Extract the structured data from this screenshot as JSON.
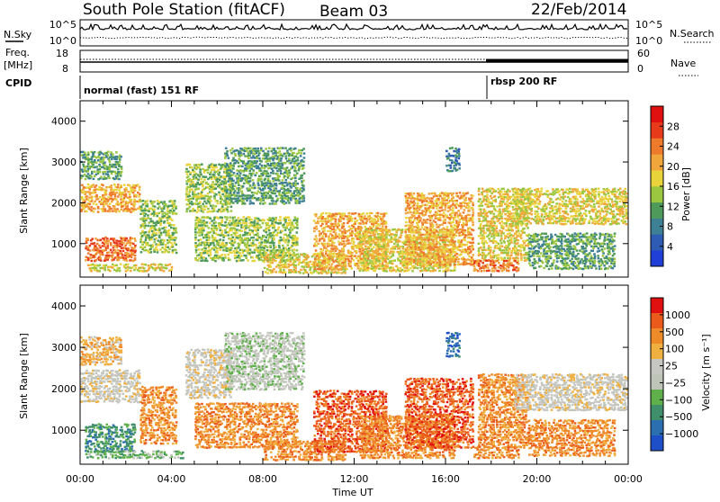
{
  "header": {
    "station_title": "South Pole Station (fitACF)",
    "beam": "Beam 03",
    "date": "22/Feb/2014"
  },
  "summary_panels": {
    "nsky_label": "N.Sky",
    "nsearch_label": "N.Search",
    "noise_ticks": [
      "10^5",
      "10^0"
    ],
    "freq_label": "Freq.",
    "freq_unit": "[MHz]",
    "freq_ticks": [
      "18",
      "8"
    ],
    "nave_label": "Nave",
    "nave_ticks": [
      "60",
      "0"
    ],
    "cpid_label": "CPID",
    "cpid_modes": [
      {
        "name": "normal (fast) 151 RF",
        "start_hour": 0.0
      },
      {
        "name": "rbsp 200 RF",
        "start_hour": 18.0
      }
    ]
  },
  "colors": {
    "power_scale": [
      "#1f3fd6",
      "#2e5cb4",
      "#3d7f93",
      "#4e9a5a",
      "#9bc640",
      "#e8d33a",
      "#f0a63a",
      "#ee7a2c",
      "#e63a1a",
      "#e01010"
    ],
    "velocity_scale": [
      "#1f4fc8",
      "#2c6fb0",
      "#3f8f6a",
      "#5fb04a",
      "#bfc4b8",
      "#c6c6c2",
      "#f0b040",
      "#ef8a28",
      "#ea5a1a",
      "#e01010"
    ]
  },
  "chart_data": [
    {
      "type": "heatmap",
      "quantity": "Power",
      "xlabel": "Time UT",
      "ylabel": "Slant Range [km]",
      "x_ticks": [
        "00:00",
        "04:00",
        "08:00",
        "12:00",
        "16:00",
        "20:00",
        "00:00"
      ],
      "xlim": [
        0,
        24
      ],
      "ylim": [
        180,
        4500
      ],
      "y_ticks": [
        1000,
        2000,
        3000,
        4000
      ],
      "colorbar_label": "Power [dB]",
      "colorbar_ticks": [
        4,
        8,
        12,
        16,
        20,
        24,
        28
      ],
      "colorbar_range": [
        0,
        32
      ],
      "echo_regions": [
        {
          "t0": 0.0,
          "t1": 2.6,
          "r0": 1800,
          "r1": 2500,
          "level": 20
        },
        {
          "t0": 0.0,
          "t1": 1.8,
          "r0": 2600,
          "r1": 3300,
          "level": 10
        },
        {
          "t0": 0.2,
          "t1": 2.4,
          "r0": 600,
          "r1": 1200,
          "level": 24
        },
        {
          "t0": 0.3,
          "t1": 4.0,
          "r0": 350,
          "r1": 550,
          "level": 18
        },
        {
          "t0": 2.6,
          "t1": 4.2,
          "r0": 800,
          "r1": 2100,
          "level": 14
        },
        {
          "t0": 4.6,
          "t1": 6.6,
          "r0": 1800,
          "r1": 3000,
          "level": 14
        },
        {
          "t0": 6.3,
          "t1": 9.8,
          "r0": 2000,
          "r1": 3400,
          "level": 12
        },
        {
          "t0": 5.0,
          "t1": 9.5,
          "r0": 600,
          "r1": 1700,
          "level": 14
        },
        {
          "t0": 8.0,
          "t1": 11.6,
          "r0": 300,
          "r1": 800,
          "level": 16
        },
        {
          "t0": 10.2,
          "t1": 13.4,
          "r0": 400,
          "r1": 1800,
          "level": 22
        },
        {
          "t0": 12.2,
          "t1": 16.4,
          "r0": 350,
          "r1": 1400,
          "level": 16
        },
        {
          "t0": 14.2,
          "t1": 17.2,
          "r0": 500,
          "r1": 2300,
          "level": 22
        },
        {
          "t0": 17.4,
          "t1": 19.6,
          "r0": 600,
          "r1": 2400,
          "level": 18
        },
        {
          "t0": 17.2,
          "t1": 19.2,
          "r0": 350,
          "r1": 650,
          "level": 24
        },
        {
          "t0": 19.0,
          "t1": 24.0,
          "r0": 1500,
          "r1": 2400,
          "level": 16
        },
        {
          "t0": 19.6,
          "t1": 23.4,
          "r0": 400,
          "r1": 1300,
          "level": 10
        },
        {
          "t0": 16.0,
          "t1": 16.6,
          "r0": 2800,
          "r1": 3400,
          "level": 8
        }
      ]
    },
    {
      "type": "heatmap",
      "quantity": "Velocity",
      "xlabel": "Time UT",
      "ylabel": "Slant Range [km]",
      "x_ticks": [
        "00:00",
        "04:00",
        "08:00",
        "12:00",
        "16:00",
        "20:00",
        "00:00"
      ],
      "xlim": [
        0,
        24
      ],
      "ylim": [
        180,
        4500
      ],
      "y_ticks": [
        1000,
        2000,
        3000,
        4000
      ],
      "colorbar_label": "Velocity [m s⁻¹]",
      "colorbar_ticks": [
        "1000",
        "500",
        "100",
        "25",
        "−25",
        "−100",
        "−500",
        "−1000"
      ],
      "echo_regions": [
        {
          "t0": 0.0,
          "t1": 2.6,
          "r0": 1700,
          "r1": 2500,
          "level": 5
        },
        {
          "t0": 0.0,
          "t1": 1.8,
          "r0": 2600,
          "r1": 3300,
          "level": 6
        },
        {
          "t0": 0.2,
          "t1": 2.4,
          "r0": 500,
          "r1": 1200,
          "level": 2
        },
        {
          "t0": 0.2,
          "t1": 4.5,
          "r0": 350,
          "r1": 550,
          "level": 3
        },
        {
          "t0": 2.6,
          "t1": 4.2,
          "r0": 700,
          "r1": 2100,
          "level": 7
        },
        {
          "t0": 4.6,
          "t1": 6.6,
          "r0": 1800,
          "r1": 3000,
          "level": 5
        },
        {
          "t0": 6.3,
          "t1": 9.8,
          "r0": 2000,
          "r1": 3400,
          "level": 4
        },
        {
          "t0": 5.0,
          "t1": 9.5,
          "r0": 600,
          "r1": 1700,
          "level": 7
        },
        {
          "t0": 8.0,
          "t1": 11.6,
          "r0": 300,
          "r1": 800,
          "level": 7
        },
        {
          "t0": 10.2,
          "t1": 13.4,
          "r0": 500,
          "r1": 2000,
          "level": 8
        },
        {
          "t0": 12.2,
          "t1": 16.4,
          "r0": 350,
          "r1": 1400,
          "level": 7
        },
        {
          "t0": 14.2,
          "t1": 17.2,
          "r0": 600,
          "r1": 2300,
          "level": 8
        },
        {
          "t0": 17.4,
          "t1": 19.6,
          "r0": 600,
          "r1": 2400,
          "level": 7
        },
        {
          "t0": 17.2,
          "t1": 19.2,
          "r0": 350,
          "r1": 650,
          "level": 7
        },
        {
          "t0": 19.0,
          "t1": 24.0,
          "r0": 1500,
          "r1": 2400,
          "level": 5
        },
        {
          "t0": 19.6,
          "t1": 23.4,
          "r0": 400,
          "r1": 1300,
          "level": 7
        },
        {
          "t0": 16.0,
          "t1": 16.6,
          "r0": 2800,
          "r1": 3400,
          "level": 1
        }
      ]
    }
  ]
}
